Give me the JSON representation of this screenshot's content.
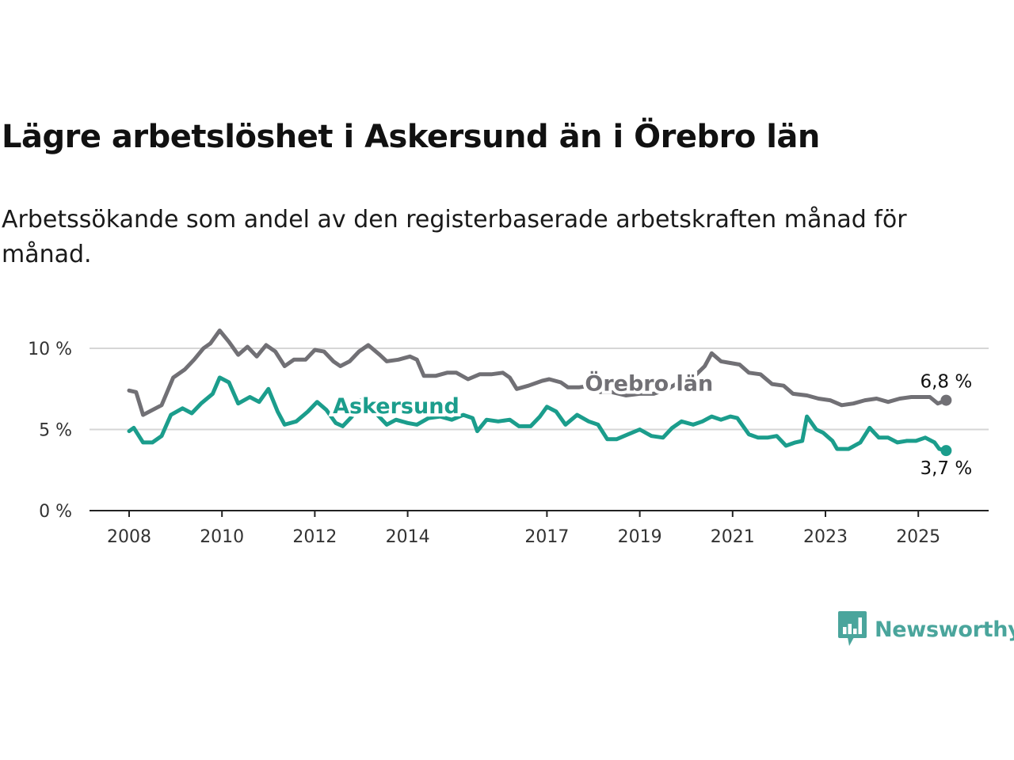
{
  "title": "Lägre arbetslöshet i Askersund än i Örebro län",
  "subtitle": "Arbetssökande som andel av den registerbaserade arbetskraften månad för månad.",
  "brand": {
    "name": "Newsworthy",
    "color": "#4aa59c",
    "icon": "bar-chart-speech-bubble-icon"
  },
  "chart_data": {
    "type": "line",
    "title": "Lägre arbetslöshet i Askersund än i Örebro län",
    "subtitle": "Arbetssökande som andel av den registerbaserade arbetskraften månad för månad.",
    "xlabel": "",
    "ylabel": "",
    "y_ticks": [
      0,
      5,
      10
    ],
    "y_tick_labels": [
      "0 %",
      "5 %",
      "10 %"
    ],
    "x_ticks": [
      2008,
      2010,
      2012,
      2014,
      2017,
      2019,
      2021,
      2023,
      2025
    ],
    "x_tick_labels": [
      "2008",
      "2010",
      "2012",
      "2014",
      "2017",
      "2019",
      "2021",
      "2023",
      "2025"
    ],
    "xlim": [
      2008.0,
      2025.75
    ],
    "ylim": [
      0,
      11
    ],
    "grid": true,
    "legend": "inline labels",
    "series": [
      {
        "name": "Örebro län",
        "color": "#717075",
        "end_label": "6,8 %",
        "points": [
          [
            2008.0,
            7.4
          ],
          [
            2008.15,
            7.3
          ],
          [
            2008.3,
            5.9
          ],
          [
            2008.5,
            6.2
          ],
          [
            2008.7,
            6.5
          ],
          [
            2008.95,
            8.2
          ],
          [
            2009.2,
            8.7
          ],
          [
            2009.4,
            9.3
          ],
          [
            2009.6,
            10.0
          ],
          [
            2009.75,
            10.3
          ],
          [
            2009.95,
            11.1
          ],
          [
            2010.15,
            10.4
          ],
          [
            2010.35,
            9.6
          ],
          [
            2010.55,
            10.1
          ],
          [
            2010.75,
            9.5
          ],
          [
            2010.95,
            10.2
          ],
          [
            2011.15,
            9.8
          ],
          [
            2011.35,
            8.9
          ],
          [
            2011.55,
            9.3
          ],
          [
            2011.8,
            9.3
          ],
          [
            2012.0,
            9.9
          ],
          [
            2012.2,
            9.8
          ],
          [
            2012.4,
            9.2
          ],
          [
            2012.55,
            8.9
          ],
          [
            2012.75,
            9.2
          ],
          [
            2012.95,
            9.8
          ],
          [
            2013.15,
            10.2
          ],
          [
            2013.4,
            9.6
          ],
          [
            2013.55,
            9.2
          ],
          [
            2013.8,
            9.3
          ],
          [
            2014.05,
            9.5
          ],
          [
            2014.2,
            9.3
          ],
          [
            2014.35,
            8.3
          ],
          [
            2014.6,
            8.3
          ],
          [
            2014.85,
            8.5
          ],
          [
            2015.05,
            8.5
          ],
          [
            2015.3,
            8.1
          ],
          [
            2015.55,
            8.4
          ],
          [
            2015.8,
            8.4
          ],
          [
            2016.05,
            8.5
          ],
          [
            2016.2,
            8.2
          ],
          [
            2016.35,
            7.5
          ],
          [
            2016.6,
            7.7
          ],
          [
            2016.9,
            8.0
          ],
          [
            2017.05,
            8.1
          ],
          [
            2017.3,
            7.9
          ],
          [
            2017.45,
            7.6
          ],
          [
            2017.7,
            7.6
          ],
          [
            2017.95,
            7.7
          ],
          [
            2018.15,
            7.3
          ],
          [
            2018.4,
            7.3
          ],
          [
            2018.7,
            7.1
          ],
          [
            2019.0,
            7.2
          ],
          [
            2019.3,
            7.2
          ],
          [
            2019.6,
            7.5
          ],
          [
            2019.9,
            8.0
          ],
          [
            2020.15,
            8.2
          ],
          [
            2020.4,
            8.9
          ],
          [
            2020.55,
            9.7
          ],
          [
            2020.75,
            9.2
          ],
          [
            2020.95,
            9.1
          ],
          [
            2021.15,
            9.0
          ],
          [
            2021.35,
            8.5
          ],
          [
            2021.6,
            8.4
          ],
          [
            2021.85,
            7.8
          ],
          [
            2022.1,
            7.7
          ],
          [
            2022.3,
            7.2
          ],
          [
            2022.6,
            7.1
          ],
          [
            2022.85,
            6.9
          ],
          [
            2023.1,
            6.8
          ],
          [
            2023.35,
            6.5
          ],
          [
            2023.6,
            6.6
          ],
          [
            2023.85,
            6.8
          ],
          [
            2024.1,
            6.9
          ],
          [
            2024.35,
            6.7
          ],
          [
            2024.6,
            6.9
          ],
          [
            2024.85,
            7.0
          ],
          [
            2025.05,
            7.0
          ],
          [
            2025.25,
            7.0
          ],
          [
            2025.42,
            6.6
          ],
          [
            2025.6,
            6.8
          ]
        ]
      },
      {
        "name": "Askersund",
        "color": "#1b9d8c",
        "end_label": "3,7 %",
        "points": [
          [
            2008.0,
            4.9
          ],
          [
            2008.1,
            5.1
          ],
          [
            2008.3,
            4.2
          ],
          [
            2008.5,
            4.2
          ],
          [
            2008.7,
            4.6
          ],
          [
            2008.9,
            5.9
          ],
          [
            2009.15,
            6.3
          ],
          [
            2009.35,
            6.0
          ],
          [
            2009.55,
            6.6
          ],
          [
            2009.8,
            7.2
          ],
          [
            2009.95,
            8.2
          ],
          [
            2010.15,
            7.9
          ],
          [
            2010.35,
            6.6
          ],
          [
            2010.6,
            7.0
          ],
          [
            2010.8,
            6.7
          ],
          [
            2011.0,
            7.5
          ],
          [
            2011.2,
            6.1
          ],
          [
            2011.35,
            5.3
          ],
          [
            2011.6,
            5.5
          ],
          [
            2011.85,
            6.1
          ],
          [
            2012.05,
            6.7
          ],
          [
            2012.25,
            6.2
          ],
          [
            2012.45,
            5.4
          ],
          [
            2012.6,
            5.2
          ],
          [
            2012.8,
            5.8
          ],
          [
            2013.0,
            6.8
          ],
          [
            2013.15,
            6.9
          ],
          [
            2013.35,
            5.9
          ],
          [
            2013.55,
            5.3
          ],
          [
            2013.75,
            5.6
          ],
          [
            2014.0,
            5.4
          ],
          [
            2014.2,
            5.3
          ],
          [
            2014.45,
            5.7
          ],
          [
            2014.7,
            5.8
          ],
          [
            2014.95,
            5.6
          ],
          [
            2015.2,
            5.9
          ],
          [
            2015.4,
            5.7
          ],
          [
            2015.5,
            4.9
          ],
          [
            2015.7,
            5.6
          ],
          [
            2015.95,
            5.5
          ],
          [
            2016.2,
            5.6
          ],
          [
            2016.4,
            5.2
          ],
          [
            2016.65,
            5.2
          ],
          [
            2016.85,
            5.8
          ],
          [
            2017.0,
            6.4
          ],
          [
            2017.2,
            6.1
          ],
          [
            2017.4,
            5.3
          ],
          [
            2017.65,
            5.9
          ],
          [
            2017.9,
            5.5
          ],
          [
            2018.1,
            5.3
          ],
          [
            2018.3,
            4.4
          ],
          [
            2018.5,
            4.4
          ],
          [
            2018.75,
            4.7
          ],
          [
            2019.0,
            5.0
          ],
          [
            2019.25,
            4.6
          ],
          [
            2019.5,
            4.5
          ],
          [
            2019.7,
            5.1
          ],
          [
            2019.9,
            5.5
          ],
          [
            2020.15,
            5.3
          ],
          [
            2020.35,
            5.5
          ],
          [
            2020.55,
            5.8
          ],
          [
            2020.75,
            5.6
          ],
          [
            2020.95,
            5.8
          ],
          [
            2021.1,
            5.7
          ],
          [
            2021.35,
            4.7
          ],
          [
            2021.55,
            4.5
          ],
          [
            2021.75,
            4.5
          ],
          [
            2021.95,
            4.6
          ],
          [
            2022.15,
            4.0
          ],
          [
            2022.35,
            4.2
          ],
          [
            2022.5,
            4.3
          ],
          [
            2022.6,
            5.8
          ],
          [
            2022.8,
            5.0
          ],
          [
            2022.95,
            4.8
          ],
          [
            2023.15,
            4.3
          ],
          [
            2023.25,
            3.8
          ],
          [
            2023.5,
            3.8
          ],
          [
            2023.75,
            4.2
          ],
          [
            2023.95,
            5.1
          ],
          [
            2024.15,
            4.5
          ],
          [
            2024.35,
            4.5
          ],
          [
            2024.55,
            4.2
          ],
          [
            2024.75,
            4.3
          ],
          [
            2024.95,
            4.3
          ],
          [
            2025.15,
            4.5
          ],
          [
            2025.35,
            4.2
          ],
          [
            2025.45,
            3.8
          ],
          [
            2025.6,
            3.7
          ]
        ]
      }
    ],
    "annotations": [
      {
        "text": "Örebro län",
        "x": 2019.2,
        "y": 7.4,
        "series": "Örebro län"
      },
      {
        "text": "Askersund",
        "x": 2013.75,
        "y": 6.0,
        "series": "Askersund"
      }
    ]
  }
}
